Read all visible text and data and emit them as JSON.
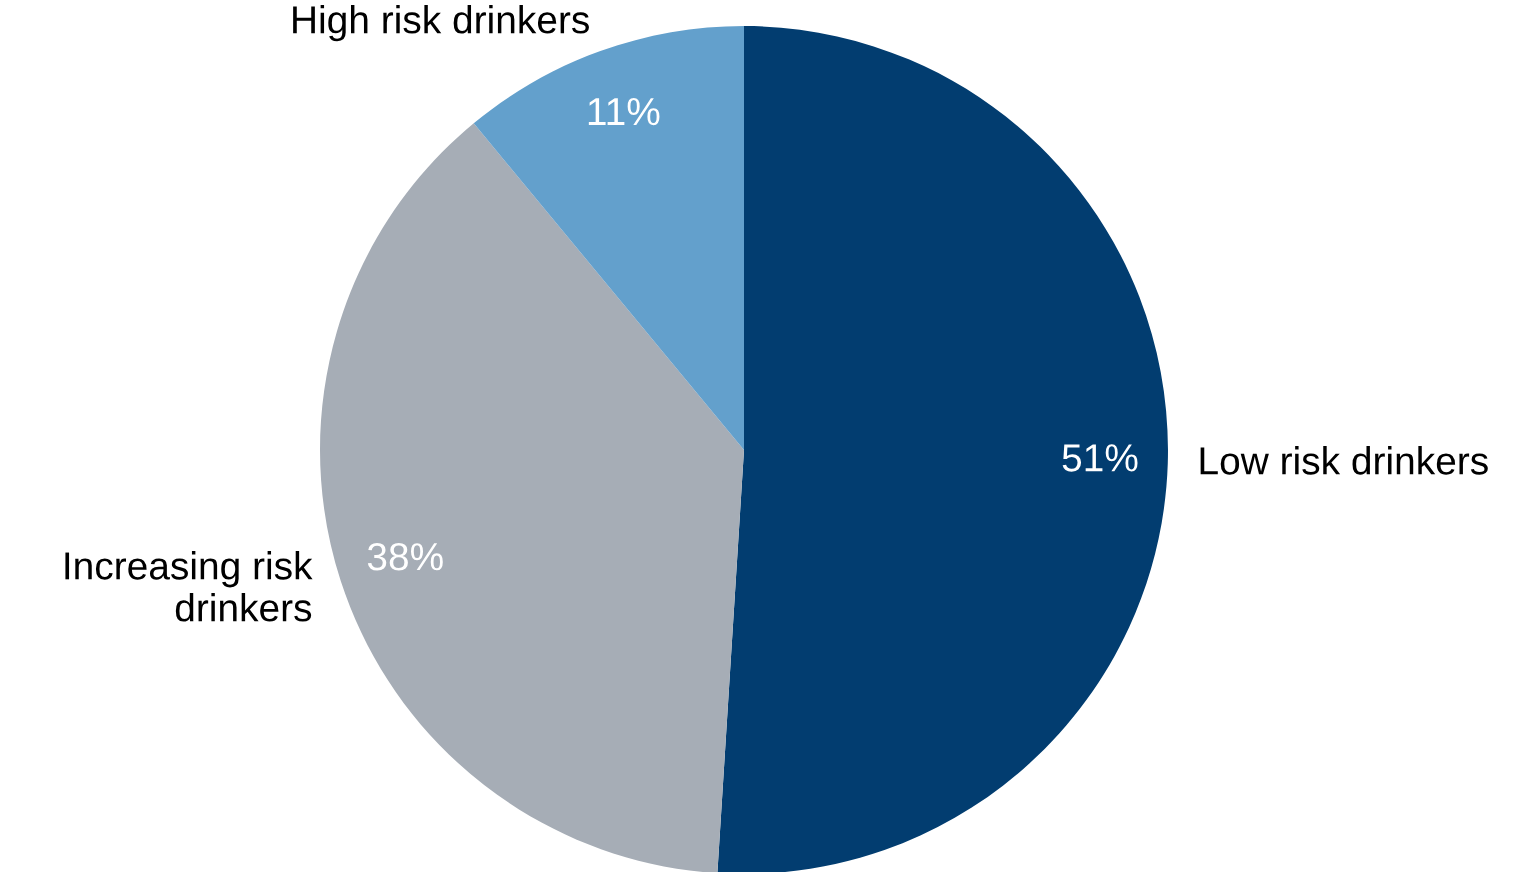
{
  "chart_data": {
    "type": "pie",
    "categories": [
      "Low risk drinkers",
      "Increasing risk\ndrinkers",
      "High risk drinkers"
    ],
    "values": [
      51,
      38,
      11
    ],
    "colors": [
      "#023d70",
      "#a6adb6",
      "#63a0cc"
    ],
    "value_labels": [
      "51%",
      "38%",
      "11%"
    ],
    "legend": false
  }
}
